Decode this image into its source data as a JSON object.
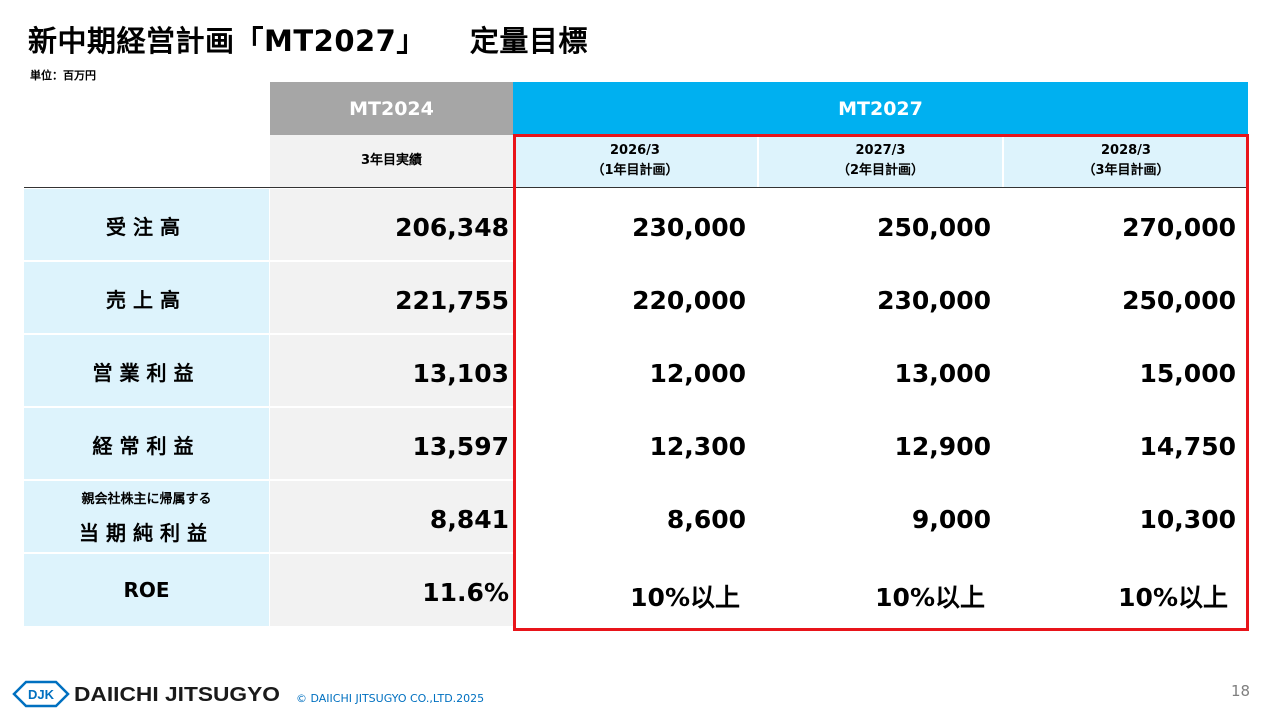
{
  "title": {
    "main": "新中期経営計画「MT2027」",
    "sub": "定量目標"
  },
  "unit": "単位：百万円",
  "header": {
    "mt2024": "MT2024",
    "mt2027": "MT2027",
    "mt2024_sub": "3年目実績",
    "plans": [
      {
        "period": "2026/3",
        "label": "（1年目計画）"
      },
      {
        "period": "2027/3",
        "label": "（2年目計画）"
      },
      {
        "period": "2028/3",
        "label": "（3年目計画）"
      }
    ]
  },
  "rows": [
    {
      "label": "受注高",
      "values": [
        "206,348",
        "230,000",
        "250,000",
        "270,000"
      ]
    },
    {
      "label": "売上高",
      "values": [
        "221,755",
        "220,000",
        "230,000",
        "250,000"
      ]
    },
    {
      "label": "営業利益",
      "values": [
        "13,103",
        "12,000",
        "13,000",
        "15,000"
      ]
    },
    {
      "label": "経常利益",
      "values": [
        "13,597",
        "12,300",
        "12,900",
        "14,750"
      ]
    },
    {
      "label_small": "親会社株主に帰属する",
      "label": "当期純利益",
      "values": [
        "8,841",
        "8,600",
        "9,000",
        "10,300"
      ]
    },
    {
      "label": "ROE",
      "values": [
        "11.6%",
        "10%以上",
        "10%以上",
        "10%以上"
      ]
    }
  ],
  "footer": {
    "logo_mark": "DJK",
    "logo_text": "DAIICHI JITSUGYO",
    "copyright": "© DAIICHI JITSUGYO CO.,LTD.2025",
    "page": "18"
  },
  "colors": {
    "mt2024_header": "#a6a6a6",
    "mt2027_header": "#00b0f0",
    "label_bg": "#ddf3fc",
    "highlight_border": "#e8141a",
    "logo": "#0070c0"
  }
}
